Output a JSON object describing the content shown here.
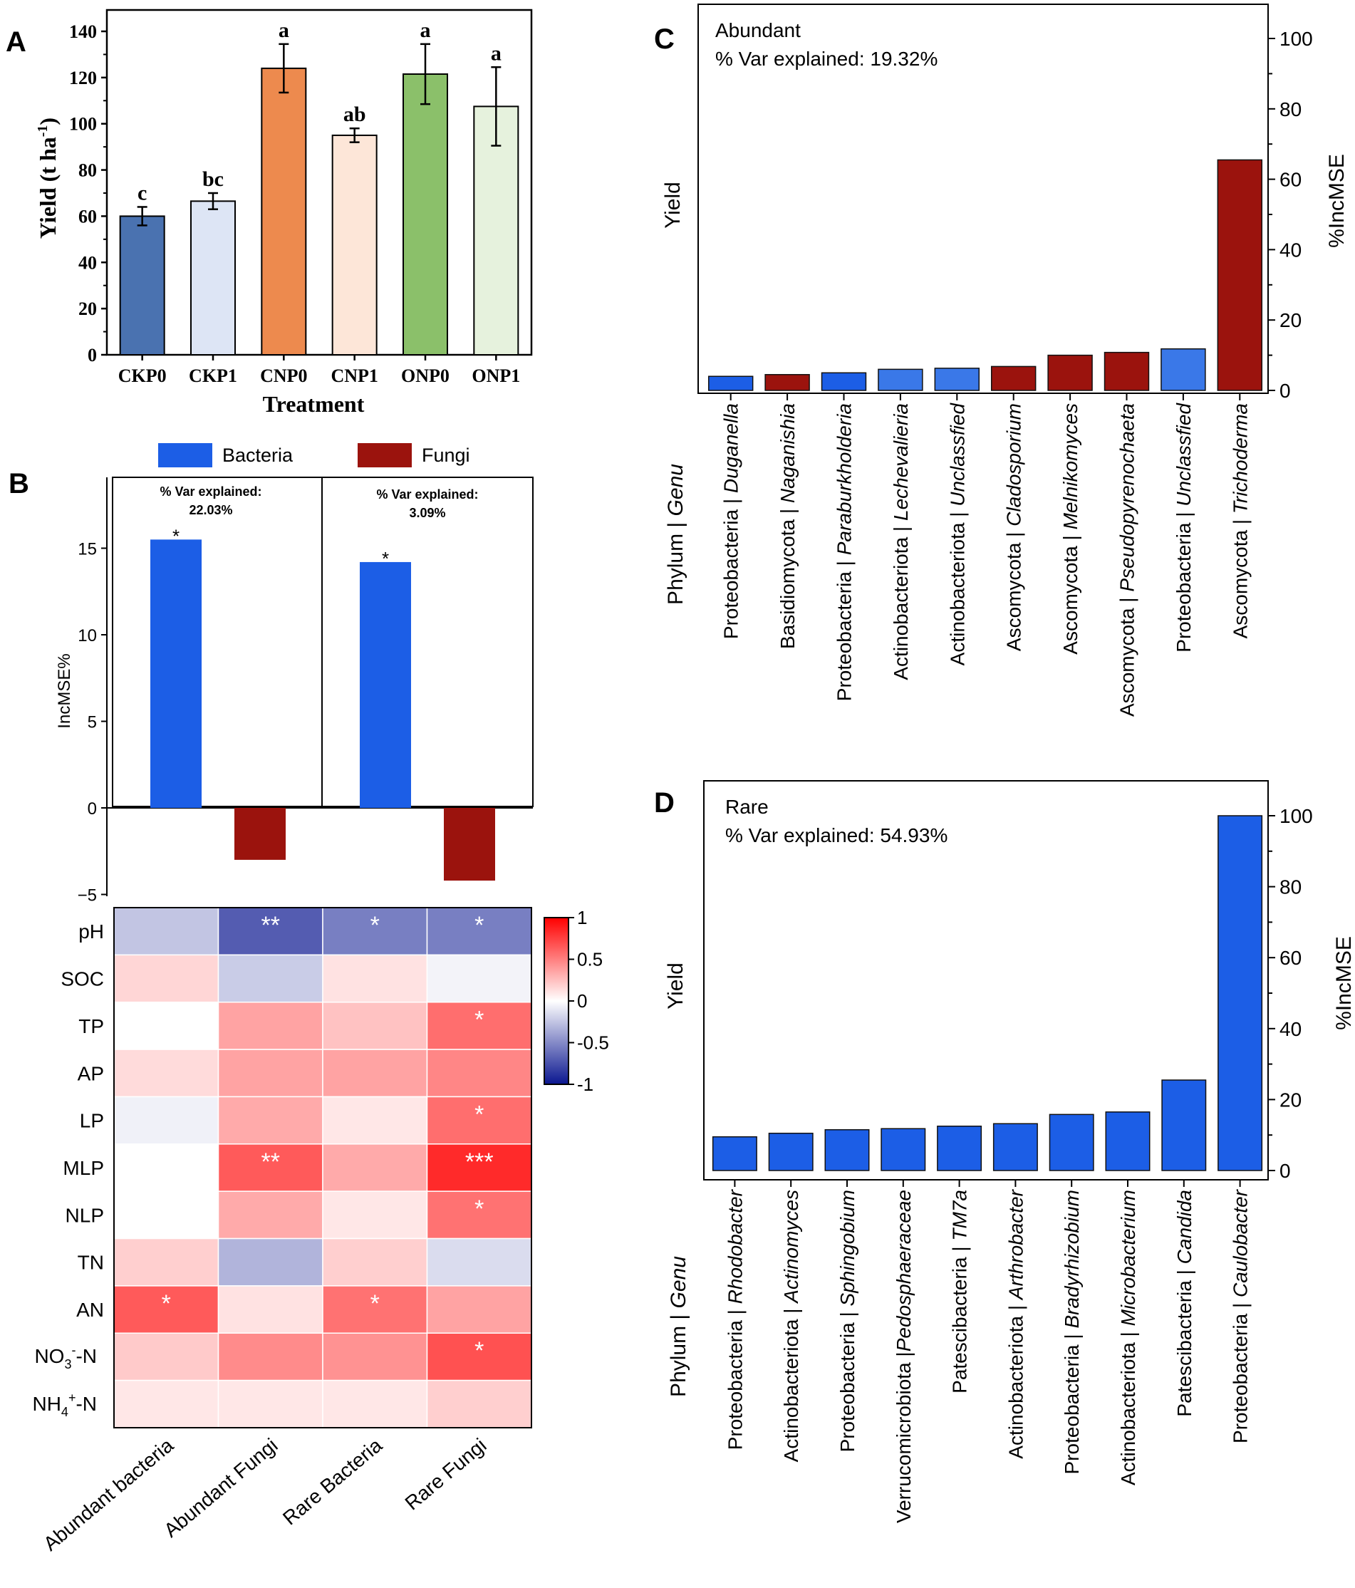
{
  "panels": {
    "A": "A",
    "B": "B",
    "C": "C",
    "D": "D"
  },
  "colors": {
    "bacteria": "#1c5ee6",
    "fungi": "#9b130d",
    "abundant_fungi": "#9b130d",
    "abundant_bacteria": "#3a78e8",
    "rare_bacteria": "#1c5ee6",
    "A_bars": [
      "#4a72b0",
      "#dde5f5",
      "#ed8a4e",
      "#fde6d8",
      "#8bc06a",
      "#e6f2dd"
    ]
  },
  "chart_data": [
    {
      "id": "A",
      "type": "bar",
      "title": "",
      "xlabel": "Treatment",
      "ylabel": "Yield (t ha-1)",
      "ylabel_main": "Yield (t ha",
      "ylabel_sup": "-1",
      "ylabel_end": ")",
      "categories": [
        "CKP0",
        "CKP1",
        "CNP0",
        "CNP1",
        "ONP0",
        "ONP1"
      ],
      "values": [
        60,
        66.5,
        124,
        95,
        121.5,
        107.5
      ],
      "errors": [
        4,
        3.5,
        10.5,
        3,
        13,
        17
      ],
      "letters": [
        "c",
        "bc",
        "a",
        "ab",
        "a",
        "a"
      ],
      "ylim": [
        0,
        140
      ],
      "yticks": [
        0,
        20,
        40,
        60,
        80,
        100,
        120,
        140
      ]
    },
    {
      "id": "B_bar",
      "type": "bar",
      "ylabel": "IncMSE%",
      "legend": [
        "Bacteria",
        "Fungi"
      ],
      "ylim": [
        -5,
        19
      ],
      "yticks": [
        -5,
        0,
        5,
        10,
        15
      ],
      "ytick_labels": [
        "−5",
        "0",
        "5",
        "10",
        "15"
      ],
      "groups": [
        {
          "var_label": "% Var explained:",
          "var_value": "22.03%",
          "series": [
            {
              "name": "Bacteria",
              "value": 15.5,
              "sig": "*"
            },
            {
              "name": "Fungi",
              "value": -3.0,
              "sig": ""
            }
          ]
        },
        {
          "var_label": "% Var explained:",
          "var_value": "3.09%",
          "series": [
            {
              "name": "Bacteria",
              "value": 14.2,
              "sig": "*"
            },
            {
              "name": "Fungi",
              "value": -4.2,
              "sig": ""
            }
          ]
        }
      ]
    },
    {
      "id": "B_heatmap",
      "type": "heatmap",
      "rows": [
        "pH",
        "SOC",
        "TP",
        "AP",
        "LP",
        "MLP",
        "NLP",
        "TN",
        "AN",
        "NO3-N",
        "NH4+-N"
      ],
      "columns": [
        "Abundant bacteria",
        "Abundant Fungi",
        "Rare Bacteria",
        "Rare Fungi"
      ],
      "values": [
        [
          -0.25,
          -0.7,
          -0.55,
          -0.55
        ],
        [
          0.17,
          -0.22,
          0.12,
          -0.05
        ],
        [
          0.0,
          0.38,
          0.25,
          0.6
        ],
        [
          0.15,
          0.38,
          0.38,
          0.5
        ],
        [
          -0.06,
          0.35,
          0.1,
          0.6
        ],
        [
          0.0,
          0.68,
          0.35,
          0.88
        ],
        [
          0.0,
          0.35,
          0.1,
          0.58
        ],
        [
          0.2,
          -0.32,
          0.2,
          -0.15
        ],
        [
          0.68,
          0.12,
          0.58,
          0.38
        ],
        [
          0.22,
          0.48,
          0.45,
          0.72
        ],
        [
          0.1,
          0.1,
          0.1,
          0.2
        ]
      ],
      "sig": [
        [
          "",
          "**",
          "*",
          "*"
        ],
        [
          "",
          "",
          "",
          ""
        ],
        [
          "",
          "",
          "",
          "*"
        ],
        [
          "",
          "",
          "",
          ""
        ],
        [
          "",
          "",
          "",
          "*"
        ],
        [
          "",
          "**",
          "",
          "***"
        ],
        [
          "",
          "",
          "",
          "*"
        ],
        [
          "",
          "",
          "",
          ""
        ],
        [
          "*",
          "",
          "*",
          ""
        ],
        [
          "",
          "",
          "",
          "*"
        ],
        [
          "",
          "",
          "",
          ""
        ]
      ],
      "colorbar": {
        "min": -1,
        "max": 1,
        "ticks": [
          "1",
          "0.5",
          "0",
          "-0.5",
          "-1"
        ],
        "tick_values": [
          1,
          0.5,
          0,
          -0.5,
          -1
        ]
      }
    },
    {
      "id": "C",
      "type": "bar",
      "title": "Abundant",
      "var_explained": "% Var explained: 19.32%",
      "xlabel": "Phylum | Genu",
      "ylabel_left": "Yield",
      "ylabel_right": "%IncMSE",
      "ylim": [
        0,
        110
      ],
      "yticks": [
        0,
        20,
        40,
        60,
        80,
        100
      ],
      "categories": [
        {
          "phylum": "Proteobacteria | ",
          "genus": "Duganella",
          "value": 4,
          "group": "bacteria"
        },
        {
          "phylum": "Basidiomycota | ",
          "genus": "Naganishia",
          "value": 4.5,
          "group": "fungi"
        },
        {
          "phylum": "Proteobacteria | ",
          "genus": "Paraburkholderia",
          "value": 5,
          "group": "bacteria"
        },
        {
          "phylum": "Actinobacteriota | ",
          "genus": "Lechevalieria",
          "value": 6,
          "group": "bacteria_light"
        },
        {
          "phylum": "Actinobacteriota | ",
          "genus": "Unclassfied",
          "value": 6.3,
          "group": "bacteria_light"
        },
        {
          "phylum": "Ascomycota | ",
          "genus": "Cladosporium",
          "value": 6.8,
          "group": "fungi"
        },
        {
          "phylum": "Ascomycota | ",
          "genus": "Melnikomyces",
          "value": 10,
          "group": "fungi"
        },
        {
          "phylum": "Ascomycota | ",
          "genus": "Pseudopyrenochaeta",
          "value": 10.8,
          "group": "fungi"
        },
        {
          "phylum": "Proteobacteria | ",
          "genus": "Unclassfied",
          "value": 11.8,
          "group": "bacteria_light"
        },
        {
          "phylum": "Ascomycota | ",
          "genus": "Trichoderma",
          "value": 65.5,
          "group": "fungi"
        }
      ]
    },
    {
      "id": "D",
      "type": "bar",
      "title": "Rare",
      "var_explained": "% Var explained: 54.93%",
      "xlabel": "Phylum | Genu",
      "ylabel_left": "Yield",
      "ylabel_right": "%IncMSE",
      "ylim": [
        0,
        110
      ],
      "yticks": [
        0,
        20,
        40,
        60,
        80,
        100
      ],
      "categories": [
        {
          "phylum": "Proteobacteria | ",
          "genus": "Rhodobacter",
          "value": 9.5,
          "group": "bacteria"
        },
        {
          "phylum": "Actinobacteriota | ",
          "genus": "Actinomyces",
          "value": 10.5,
          "group": "bacteria"
        },
        {
          "phylum": "Proteobacteria | ",
          "genus": "Sphingobium",
          "value": 11.5,
          "group": "bacteria"
        },
        {
          "phylum": "Verrucomicrobiota |",
          "genus": "Pedosphaeraceae",
          "value": 11.8,
          "group": "bacteria"
        },
        {
          "phylum": "Patescibacteria | ",
          "genus": "TM7a",
          "value": 12.5,
          "group": "bacteria"
        },
        {
          "phylum": "Actinobacteriota | ",
          "genus": "Arthrobacter",
          "value": 13.2,
          "group": "bacteria"
        },
        {
          "phylum": "Proteobacteria | ",
          "genus": "Bradyrhizobium",
          "value": 15.8,
          "group": "bacteria"
        },
        {
          "phylum": "Actinobacteriota | ",
          "genus": "Microbacterium",
          "value": 16.5,
          "group": "bacteria"
        },
        {
          "phylum": "Patescibacteria | ",
          "genus": "Candida",
          "value": 25.5,
          "group": "bacteria"
        },
        {
          "phylum": "Proteobacteria | ",
          "genus": "Caulobacter",
          "value": 100,
          "group": "bacteria"
        }
      ]
    }
  ]
}
